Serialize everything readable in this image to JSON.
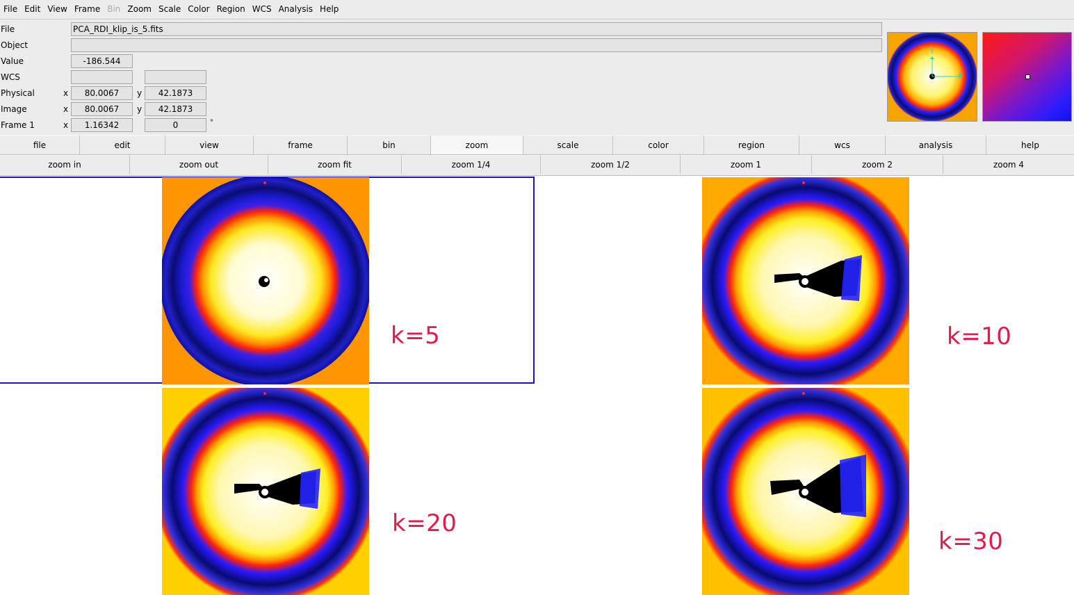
{
  "menu": [
    "File",
    "Edit",
    "View",
    "Frame",
    "Bin",
    "Zoom",
    "Scale",
    "Color",
    "Region",
    "WCS",
    "Analysis",
    "Help"
  ],
  "menu_disabled": [
    "Bin"
  ],
  "info": {
    "file_label": "File",
    "file_value": "PCA_RDI_klip_is_5.fits",
    "object_label": "Object",
    "object_value": "",
    "value_label": "Value",
    "value_value": "-186.544",
    "wcs_label": "WCS",
    "wcs_value1": "",
    "wcs_value2": "",
    "physical_label": "Physical",
    "physical_x_axis": "x",
    "physical_x": "80.0067",
    "physical_y_axis": "y",
    "physical_y": "42.1873",
    "image_label": "Image",
    "image_x_axis": "x",
    "image_x": "80.0067",
    "image_y_axis": "y",
    "image_y": "42.1873",
    "frame_label": "Frame 1",
    "frame_x_axis": "x",
    "frame_zoom": "1.16342",
    "frame_angle": "0",
    "frame_angle_unit": "°"
  },
  "panner": {
    "x_axis_label": "X",
    "y_axis_label": "Y"
  },
  "buttonbar_main": [
    "file",
    "edit",
    "view",
    "frame",
    "bin",
    "zoom",
    "scale",
    "color",
    "region",
    "wcs",
    "analysis",
    "help"
  ],
  "buttonbar_main_active": "zoom",
  "buttonbar_zoom": [
    "zoom in",
    "zoom out",
    "zoom fit",
    "zoom 1/4",
    "zoom 1/2",
    "zoom 1",
    "zoom 2",
    "zoom 4"
  ],
  "frames": [
    {
      "label": "k=5"
    },
    {
      "label": "k=10"
    },
    {
      "label": "k=20"
    },
    {
      "label": "k=30"
    }
  ],
  "colors": {
    "label_red": "#e8194a",
    "active_frame_border": "#1414c8",
    "colormap_core": "#fffde0",
    "colormap_yellow": "#ffee20",
    "colormap_orange": "#ff9a00",
    "colormap_red": "#ff2010",
    "colormap_blue": "#1818ff",
    "colormap_navy": "#0a0a70"
  }
}
